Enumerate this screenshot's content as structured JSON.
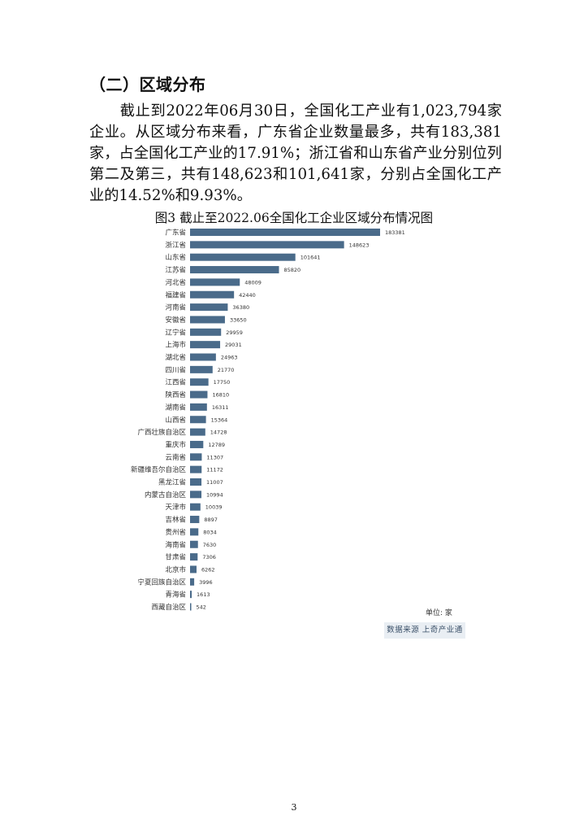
{
  "section_heading": "（二）区域分布",
  "paragraph": "　　截止到2022年06月30日，全国化工产业有1,023,794家企业。从区域分布来看，广东省企业数量最多，共有183,381家，占全国化工产业的17.91%；浙江省和山东省产业分别位列第二及第三，共有148,623和101,641家，分别占全国化工产业的14.52%和9.93%。",
  "figure": {
    "title": "图3 截止至2022.06全国化工企业区域分布情况图",
    "unit_label": "单位: 家",
    "source_label": "数据来源 上奇产业通"
  },
  "page_number": "3",
  "colors": {
    "bar": "#4a6b8a"
  },
  "chart_data": {
    "type": "bar",
    "orientation": "horizontal",
    "categories": [
      "广东省",
      "浙江省",
      "山东省",
      "江苏省",
      "河北省",
      "福建省",
      "河南省",
      "安徽省",
      "辽宁省",
      "上海市",
      "湖北省",
      "四川省",
      "江西省",
      "陕西省",
      "湖南省",
      "山西省",
      "广西壮族自治区",
      "重庆市",
      "云南省",
      "新疆维吾尔自治区",
      "黑龙江省",
      "内蒙古自治区",
      "天津市",
      "吉林省",
      "贵州省",
      "海南省",
      "甘肃省",
      "北京市",
      "宁夏回族自治区",
      "青海省",
      "西藏自治区"
    ],
    "values": [
      183381,
      148623,
      101641,
      85820,
      48009,
      42440,
      36380,
      33650,
      29959,
      29031,
      24963,
      21770,
      17750,
      16810,
      16311,
      15364,
      14728,
      12789,
      11307,
      11172,
      11007,
      10994,
      10039,
      8897,
      8034,
      7630,
      7306,
      6262,
      3996,
      1613,
      542
    ],
    "xlim": [
      0,
      183381
    ],
    "grid": false,
    "legend": "none"
  }
}
